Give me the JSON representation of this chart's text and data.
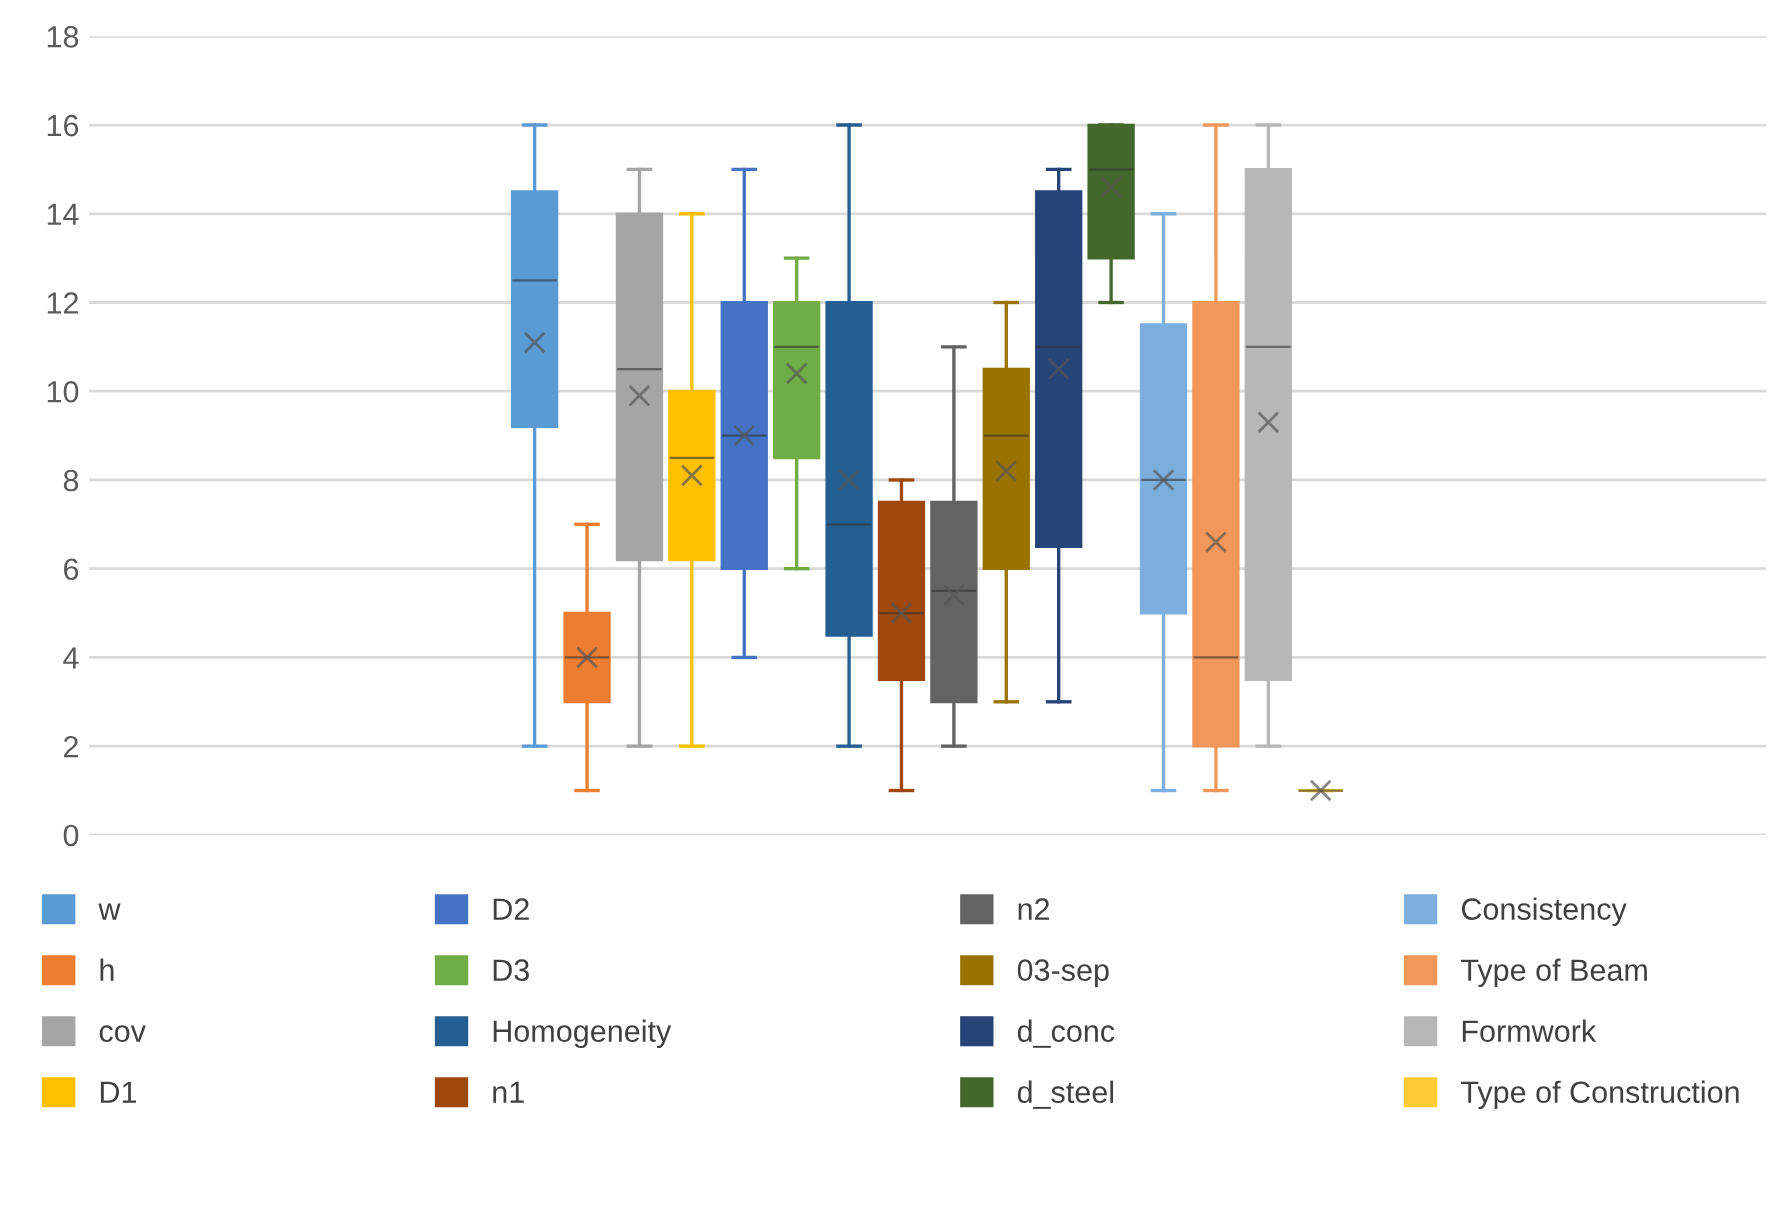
{
  "chart_data": {
    "type": "box",
    "categories": [
      null
    ],
    "ylim": [
      0,
      18
    ],
    "yticks": [
      0,
      2,
      4,
      6,
      8,
      10,
      12,
      14,
      16,
      18
    ],
    "grid": "y",
    "legend": "bottom",
    "marker": "cross",
    "series": [
      {
        "name": "w",
        "color": "#5b9bd5",
        "boxes": [
          {
            "low": 2,
            "q1": 9.2,
            "median": 12.5,
            "q3": 14.5,
            "high": 16,
            "mean": 11.1
          }
        ]
      },
      {
        "name": "h",
        "color": "#ed7d31",
        "boxes": [
          {
            "low": 1,
            "q1": 3,
            "median": 4,
            "q3": 5,
            "high": 7,
            "mean": 4
          }
        ]
      },
      {
        "name": "cov",
        "color": "#a5a5a5",
        "boxes": [
          {
            "low": 2,
            "q1": 6.2,
            "median": 10.5,
            "q3": 14,
            "high": 15,
            "mean": 9.9
          }
        ]
      },
      {
        "name": "D1",
        "color": "#ffc000",
        "boxes": [
          {
            "low": 2,
            "q1": 6.2,
            "median": 8.5,
            "q3": 10,
            "high": 14,
            "mean": 8.1
          }
        ]
      },
      {
        "name": "D2",
        "color": "#4472c4",
        "boxes": [
          {
            "low": 4,
            "q1": 6,
            "median": 9,
            "q3": 12,
            "high": 15,
            "mean": 9
          }
        ]
      },
      {
        "name": "D3",
        "color": "#70ad47",
        "boxes": [
          {
            "low": 6,
            "q1": 8.5,
            "median": 11,
            "q3": 12,
            "high": 13,
            "mean": 10.4
          }
        ]
      },
      {
        "name": "Homogeneity",
        "color": "#255e91",
        "boxes": [
          {
            "low": 2,
            "q1": 4.5,
            "median": 7,
            "q3": 12,
            "high": 16,
            "mean": 8
          }
        ]
      },
      {
        "name": "n1",
        "color": "#9e480e",
        "boxes": [
          {
            "low": 1,
            "q1": 3.5,
            "median": 5,
            "q3": 7.5,
            "high": 8,
            "mean": 5
          }
        ]
      },
      {
        "name": "n2",
        "color": "#636363",
        "boxes": [
          {
            "low": 2,
            "q1": 3,
            "median": 5.5,
            "q3": 7.5,
            "high": 11,
            "mean": 5.4
          }
        ]
      },
      {
        "name": "03-sep",
        "color": "#997300",
        "boxes": [
          {
            "low": 3,
            "q1": 6,
            "median": 9,
            "q3": 10.5,
            "high": 12,
            "mean": 8.2
          }
        ]
      },
      {
        "name": "d_conc",
        "color": "#264478",
        "boxes": [
          {
            "low": 3,
            "q1": 6.5,
            "median": 11,
            "q3": 14.5,
            "high": 15,
            "mean": 10.5
          }
        ]
      },
      {
        "name": "d_steel",
        "color": "#43682b",
        "boxes": [
          {
            "low": 12,
            "q1": 13,
            "median": 15,
            "q3": 16,
            "high": 16,
            "mean": 14.6
          }
        ]
      },
      {
        "name": "Consistency",
        "color": "#7cafdd",
        "boxes": [
          {
            "low": 1,
            "q1": 5,
            "median": 8,
            "q3": 11.5,
            "high": 14,
            "mean": 8
          }
        ]
      },
      {
        "name": "Type of Beam",
        "color": "#f1975a",
        "boxes": [
          {
            "low": 1,
            "q1": 2,
            "median": 4,
            "q3": 12,
            "high": 16,
            "mean": 6.6
          }
        ]
      },
      {
        "name": "Formwork",
        "color": "#b7b7b7",
        "boxes": [
          {
            "low": 2,
            "q1": 3.5,
            "median": 11,
            "q3": 15,
            "high": 16,
            "mean": 9.3
          }
        ]
      },
      {
        "name": "Type of Construction",
        "color": "#ffcd33",
        "boxes": [
          {
            "low": 1,
            "q1": 1,
            "median": 1,
            "q3": 1,
            "high": 1,
            "mean": 1
          }
        ]
      }
    ]
  }
}
